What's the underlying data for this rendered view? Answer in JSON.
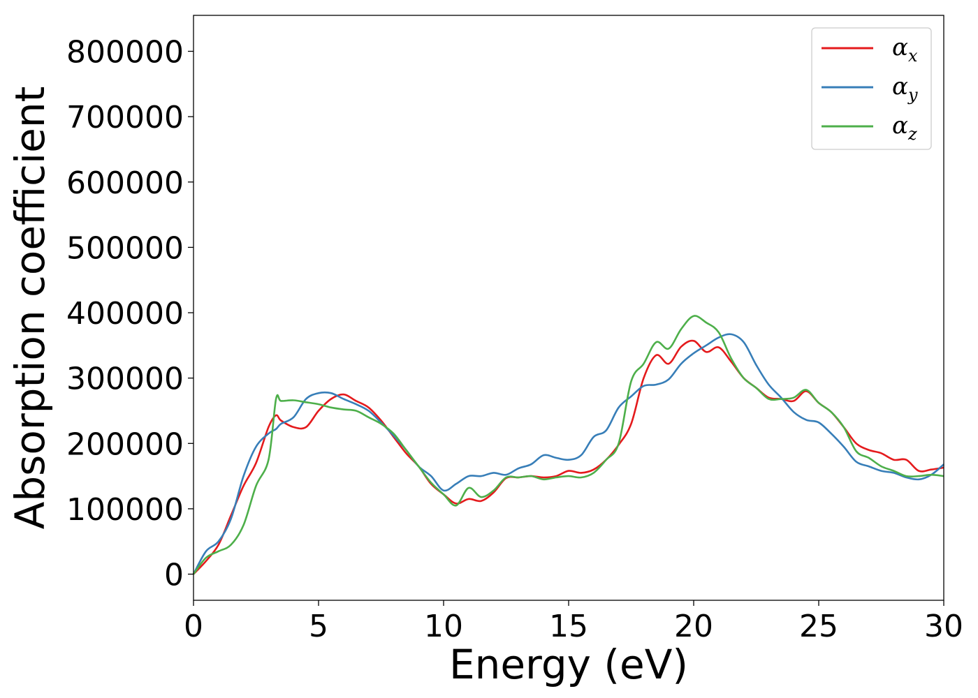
{
  "chart_data": {
    "type": "line",
    "xlabel": "Energy (eV)",
    "ylabel": "Absorption coefficient",
    "xlim": [
      0,
      30
    ],
    "ylim": [
      -40000,
      855000
    ],
    "xticks": [
      0,
      5,
      10,
      15,
      20,
      25,
      30
    ],
    "yticks": [
      0,
      100000,
      200000,
      300000,
      400000,
      500000,
      600000,
      700000,
      800000
    ],
    "grid": false,
    "legend_position": "top-right",
    "x": [
      0,
      0.5,
      1,
      1.5,
      2,
      2.5,
      3,
      3.3,
      3.5,
      4,
      4.5,
      5,
      5.5,
      6,
      6.5,
      7,
      7.5,
      8,
      8.5,
      9,
      9.5,
      10,
      10.5,
      11,
      11.5,
      12,
      12.5,
      13,
      13.5,
      14,
      14.5,
      15,
      15.5,
      16,
      16.5,
      17,
      17.5,
      18,
      18.5,
      19,
      19.5,
      20,
      20.5,
      21,
      21.5,
      22,
      22.5,
      23,
      23.5,
      24,
      24.5,
      25,
      25.5,
      26,
      26.5,
      27,
      27.5,
      28,
      28.5,
      29,
      29.5,
      30
    ],
    "series": [
      {
        "name": "α",
        "sub": "x",
        "color": "#e41a1c",
        "values": [
          0,
          20000,
          45000,
          90000,
          135000,
          170000,
          225000,
          243000,
          235000,
          225000,
          225000,
          250000,
          268000,
          275000,
          265000,
          255000,
          235000,
          210000,
          185000,
          165000,
          138000,
          122000,
          108000,
          115000,
          112000,
          125000,
          147000,
          148000,
          150000,
          148000,
          150000,
          158000,
          155000,
          160000,
          175000,
          198000,
          230000,
          300000,
          335000,
          322000,
          348000,
          357000,
          340000,
          347000,
          325000,
          300000,
          285000,
          270000,
          268000,
          265000,
          280000,
          262000,
          248000,
          225000,
          200000,
          190000,
          185000,
          175000,
          175000,
          158000,
          160000,
          163000
        ]
      },
      {
        "name": "α",
        "sub": "y",
        "color": "#377eb8",
        "values": [
          0,
          35000,
          50000,
          85000,
          150000,
          195000,
          215000,
          222000,
          230000,
          240000,
          268000,
          277000,
          277000,
          268000,
          260000,
          250000,
          232000,
          212000,
          190000,
          165000,
          150000,
          128000,
          138000,
          150000,
          150000,
          155000,
          152000,
          162000,
          168000,
          182000,
          178000,
          175000,
          182000,
          210000,
          220000,
          255000,
          272000,
          288000,
          290000,
          298000,
          322000,
          338000,
          350000,
          362000,
          367000,
          355000,
          320000,
          290000,
          270000,
          248000,
          236000,
          232000,
          215000,
          195000,
          172000,
          165000,
          158000,
          155000,
          148000,
          145000,
          152000,
          168000
        ]
      },
      {
        "name": "α",
        "sub": "z",
        "color": "#4daf4a",
        "values": [
          0,
          25000,
          35000,
          45000,
          75000,
          135000,
          175000,
          268000,
          265000,
          266000,
          263000,
          260000,
          255000,
          252000,
          250000,
          240000,
          230000,
          215000,
          190000,
          165000,
          140000,
          122000,
          105000,
          132000,
          118000,
          128000,
          148000,
          148000,
          150000,
          145000,
          148000,
          150000,
          148000,
          155000,
          175000,
          200000,
          295000,
          322000,
          355000,
          345000,
          375000,
          395000,
          385000,
          370000,
          330000,
          300000,
          285000,
          268000,
          268000,
          270000,
          282000,
          262000,
          248000,
          225000,
          188000,
          178000,
          165000,
          158000,
          150000,
          150000,
          152000,
          150000
        ]
      }
    ]
  }
}
